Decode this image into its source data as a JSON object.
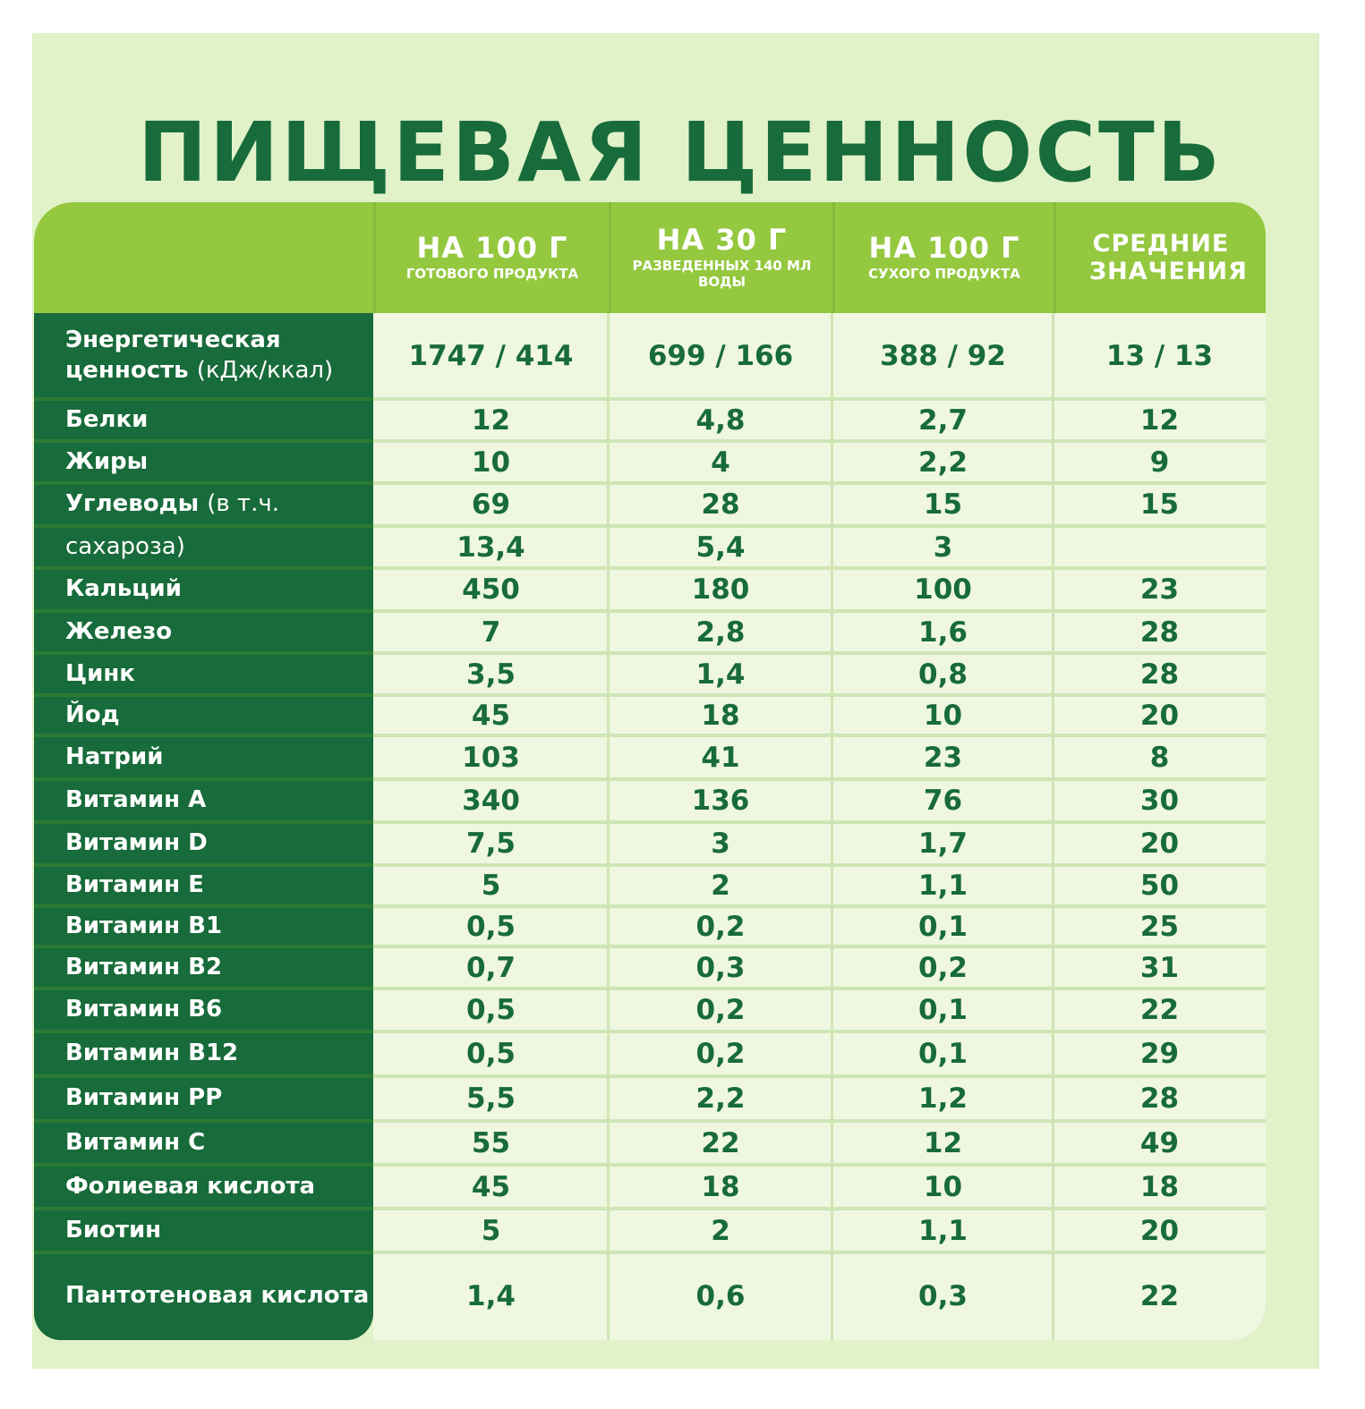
{
  "title": "ПИЩЕВАЯ ЦЕННОСТЬ",
  "columns": [
    {
      "main": "НА 100 Г",
      "sub": "ГОТОВОГО ПРОДУКТА"
    },
    {
      "main": "НА 30 Г",
      "sub": "РАЗВЕДЕННЫХ 140 МЛ ВОДЫ"
    },
    {
      "main": "НА 100 Г",
      "sub": "СУХОГО ПРОДУКТА"
    },
    {
      "main": "СРЕДНИЕ ЗНАЧЕНИЯ",
      "sub": ""
    }
  ],
  "colors": {
    "dark_green": "#186b3a",
    "header_green": "#94c83f",
    "panel_bg": "#e1f2c8",
    "cell_bg": "#eff7e1"
  },
  "rows": [
    {
      "label": "Энергетическая ценность",
      "label_note": "(кДж/ккал)",
      "values": [
        "1747 / 414",
        "699 / 166",
        "388 / 92",
        "13 / 13"
      ]
    },
    {
      "label": "Белки",
      "label_note": "",
      "values": [
        "12",
        "4,8",
        "2,7",
        "12"
      ]
    },
    {
      "label": "Жиры",
      "label_note": "",
      "values": [
        "10",
        "4",
        "2,2",
        "9"
      ]
    },
    {
      "label": "Углеводы",
      "label_note": "(в т.ч.",
      "values": [
        "69",
        "28",
        "15",
        "15"
      ]
    },
    {
      "label": "",
      "label_note": "сахароза)",
      "values": [
        "13,4",
        "5,4",
        "3",
        ""
      ]
    },
    {
      "label": "Кальций",
      "label_note": "",
      "values": [
        "450",
        "180",
        "100",
        "23"
      ]
    },
    {
      "label": "Железо",
      "label_note": "",
      "values": [
        "7",
        "2,8",
        "1,6",
        "28"
      ]
    },
    {
      "label": "Цинк",
      "label_note": "",
      "values": [
        "3,5",
        "1,4",
        "0,8",
        "28"
      ]
    },
    {
      "label": "Йод",
      "label_note": "",
      "values": [
        "45",
        "18",
        "10",
        "20"
      ]
    },
    {
      "label": "Натрий",
      "label_note": "",
      "values": [
        "103",
        "41",
        "23",
        "8"
      ]
    },
    {
      "label": "Витамин А",
      "label_note": "",
      "values": [
        "340",
        "136",
        "76",
        "30"
      ]
    },
    {
      "label": "Витамин D",
      "label_note": "",
      "values": [
        "7,5",
        "3",
        "1,7",
        "20"
      ]
    },
    {
      "label": "Витамин E",
      "label_note": "",
      "values": [
        "5",
        "2",
        "1,1",
        "50"
      ]
    },
    {
      "label": "Витамин B1",
      "label_note": "",
      "values": [
        "0,5",
        "0,2",
        "0,1",
        "25"
      ]
    },
    {
      "label": "Витамин B2",
      "label_note": "",
      "values": [
        "0,7",
        "0,3",
        "0,2",
        "31"
      ]
    },
    {
      "label": "Витамин B6",
      "label_note": "",
      "values": [
        "0,5",
        "0,2",
        "0,1",
        "22"
      ]
    },
    {
      "label": "Витамин B12",
      "label_note": "",
      "values": [
        "0,5",
        "0,2",
        "0,1",
        "29"
      ]
    },
    {
      "label": "Витамин PP",
      "label_note": "",
      "values": [
        "5,5",
        "2,2",
        "1,2",
        "28"
      ]
    },
    {
      "label": "Витамин C",
      "label_note": "",
      "values": [
        "55",
        "22",
        "12",
        "49"
      ]
    },
    {
      "label": "Фолиевая кислота",
      "label_note": "",
      "values": [
        "45",
        "18",
        "10",
        "18"
      ]
    },
    {
      "label": "Биотин",
      "label_note": "",
      "values": [
        "5",
        "2",
        "1,1",
        "20"
      ]
    },
    {
      "label": "Пантотеновая кислота",
      "label_note": "",
      "values": [
        "1,4",
        "0,6",
        "0,3",
        "22"
      ]
    }
  ]
}
